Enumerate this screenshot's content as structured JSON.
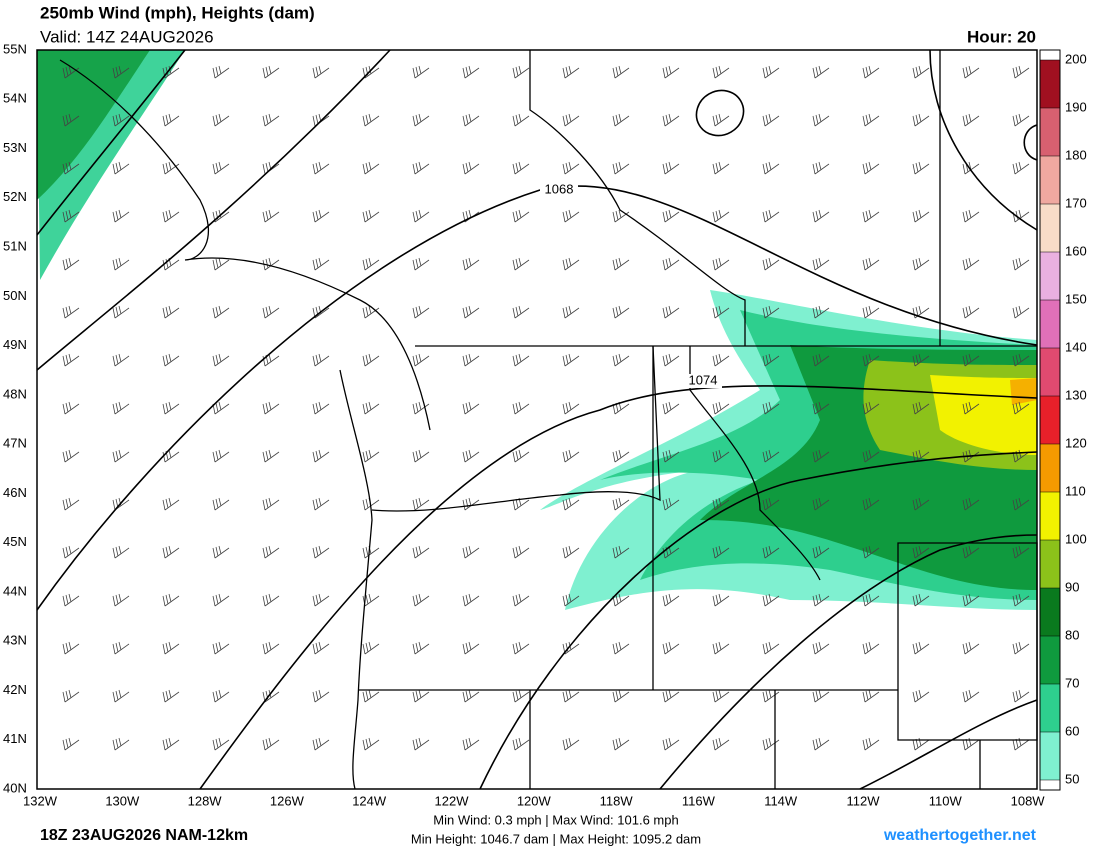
{
  "header": {
    "title": "250mb Wind (mph), Heights (dam)",
    "valid": "Valid: 14Z 24AUG2026",
    "hour": "Hour: 20"
  },
  "lat_labels": [
    "55N",
    "54N",
    "53N",
    "52N",
    "51N",
    "50N",
    "49N",
    "48N",
    "47N",
    "46N",
    "45N",
    "44N",
    "43N",
    "42N",
    "41N",
    "40N"
  ],
  "lon_labels": [
    "132W",
    "130W",
    "128W",
    "126W",
    "124W",
    "122W",
    "120W",
    "118W",
    "116W",
    "114W",
    "112W",
    "110W",
    "108W"
  ],
  "contour_labels": [
    "1068",
    "1074"
  ],
  "colorbar": {
    "ticks": [
      50,
      60,
      70,
      80,
      90,
      100,
      110,
      120,
      130,
      140,
      150,
      160,
      170,
      180,
      190,
      200
    ],
    "colors": [
      "#7ff0d0",
      "#2ecf8e",
      "#0f9a3e",
      "#0a7a1e",
      "#8cc21a",
      "#f2f200",
      "#f59a00",
      "#e8202a",
      "#e04a70",
      "#e070b8",
      "#eab0e0",
      "#f8dcc8",
      "#f0a8a0",
      "#d86070",
      "#a01020"
    ]
  },
  "footer": {
    "run": "18Z 23AUG2026 NAM-12km",
    "wind": "Min Wind:   0.3 mph | Max Wind: 101.6 mph",
    "height": "Min Height: 1046.7 dam | Max Height: 1095.2 dam",
    "site": "weathertogether.net"
  }
}
